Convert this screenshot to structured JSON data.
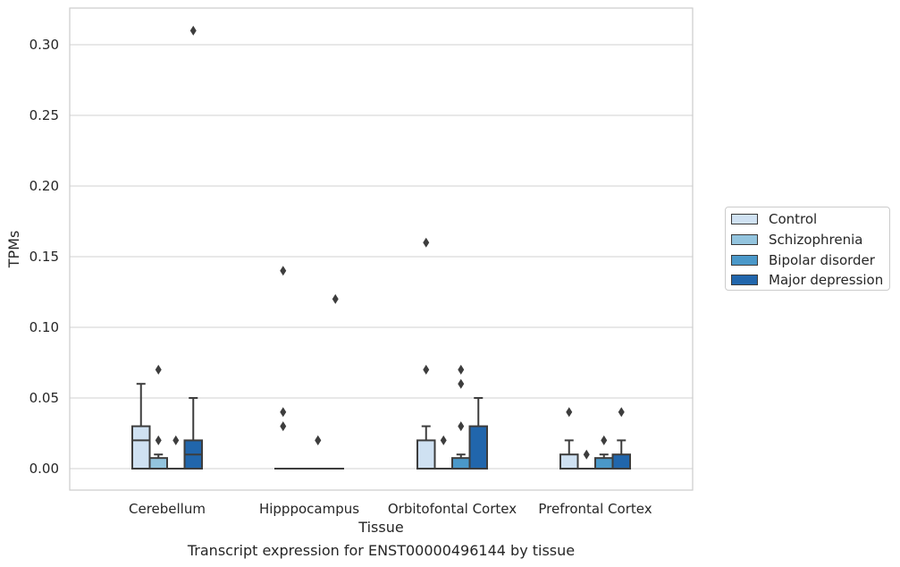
{
  "chart_data": {
    "type": "box",
    "title": "",
    "caption": "Transcript expression for ENST00000496144 by tissue",
    "xlabel": "Tissue",
    "ylabel": "TPMs",
    "ylim": [
      -0.015,
      0.325
    ],
    "yticks": [
      "0.00",
      "0.05",
      "0.10",
      "0.15",
      "0.20",
      "0.25",
      "0.30"
    ],
    "grid": "horizontal",
    "legend_position": "right",
    "categories": [
      "Cerebellum",
      "Hipppocampus",
      "Orbitofontal Cortex",
      "Prefrontal Cortex"
    ],
    "series": [
      {
        "name": "Control",
        "color": "#cfe1f2",
        "boxes": [
          {
            "q1": 0.0,
            "median": 0.02,
            "q3": 0.03,
            "whisker_low": 0.0,
            "whisker_high": 0.06,
            "outliers": []
          },
          {
            "q1": 0.0,
            "median": 0.0,
            "q3": 0.0,
            "whisker_low": 0.0,
            "whisker_high": 0.0,
            "outliers": [
              0.03,
              0.04,
              0.14
            ]
          },
          {
            "q1": 0.0,
            "median": 0.0,
            "q3": 0.02,
            "whisker_low": 0.0,
            "whisker_high": 0.03,
            "outliers": [
              0.07,
              0.16
            ]
          },
          {
            "q1": 0.0,
            "median": 0.0,
            "q3": 0.01,
            "whisker_low": 0.0,
            "whisker_high": 0.02,
            "outliers": [
              0.04
            ]
          }
        ]
      },
      {
        "name": "Schizophrenia",
        "color": "#93c4de",
        "boxes": [
          {
            "q1": 0.0,
            "median": 0.0,
            "q3": 0.0075,
            "whisker_low": 0.0,
            "whisker_high": 0.01,
            "outliers": [
              0.02,
              0.07
            ]
          },
          {
            "q1": 0.0,
            "median": 0.0,
            "q3": 0.0,
            "whisker_low": 0.0,
            "whisker_high": 0.0,
            "outliers": []
          },
          {
            "q1": 0.0,
            "median": 0.0,
            "q3": 0.0,
            "whisker_low": 0.0,
            "whisker_high": 0.0,
            "outliers": [
              0.02
            ]
          },
          {
            "q1": 0.0,
            "median": 0.0,
            "q3": 0.0,
            "whisker_low": 0.0,
            "whisker_high": 0.0,
            "outliers": [
              0.01
            ]
          }
        ]
      },
      {
        "name": "Bipolar disorder",
        "color": "#4a98c9",
        "boxes": [
          {
            "q1": 0.0,
            "median": 0.0,
            "q3": 0.0,
            "whisker_low": 0.0,
            "whisker_high": 0.0,
            "outliers": [
              0.02
            ]
          },
          {
            "q1": 0.0,
            "median": 0.0,
            "q3": 0.0,
            "whisker_low": 0.0,
            "whisker_high": 0.0,
            "outliers": [
              0.02,
              0.02
            ]
          },
          {
            "q1": 0.0,
            "median": 0.0,
            "q3": 0.0075,
            "whisker_low": 0.0,
            "whisker_high": 0.01,
            "outliers": [
              0.03,
              0.06,
              0.07
            ]
          },
          {
            "q1": 0.0,
            "median": 0.0,
            "q3": 0.0075,
            "whisker_low": 0.0,
            "whisker_high": 0.01,
            "outliers": [
              0.02
            ]
          }
        ]
      },
      {
        "name": "Major depression",
        "color": "#2166ac",
        "boxes": [
          {
            "q1": 0.0,
            "median": 0.01,
            "q3": 0.02,
            "whisker_low": 0.0,
            "whisker_high": 0.05,
            "outliers": [
              0.31
            ]
          },
          {
            "q1": 0.0,
            "median": 0.0,
            "q3": 0.0,
            "whisker_low": 0.0,
            "whisker_high": 0.0,
            "outliers": [
              0.12
            ]
          },
          {
            "q1": 0.0,
            "median": 0.0,
            "q3": 0.03,
            "whisker_low": 0.0,
            "whisker_high": 0.05,
            "outliers": []
          },
          {
            "q1": 0.0,
            "median": 0.0,
            "q3": 0.01,
            "whisker_low": 0.0,
            "whisker_high": 0.02,
            "outliers": [
              0.04
            ]
          }
        ]
      }
    ]
  },
  "colors": {
    "grid": "#d9d9d9",
    "frame": "#cccccc",
    "box_edge": "#3d3d3d",
    "outlier": "#3d3d3d"
  }
}
